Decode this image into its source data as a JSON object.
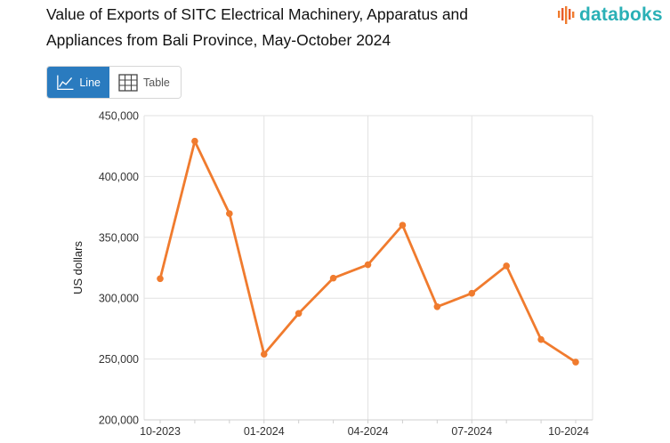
{
  "title": "Value of Exports of SITC Electrical Machinery, Apparatus and Appliances from Bali Province, May-October 2024",
  "logo": {
    "text": "databoks",
    "icon": "databoks-logo-icon",
    "color": "#2ab0b6"
  },
  "view_toggle": {
    "line_label": "Line",
    "table_label": "Table",
    "line_icon": "line-chart-icon",
    "table_icon": "table-grid-icon",
    "active": "line",
    "active_color": "#2a7bbf"
  },
  "chart_data": {
    "type": "line",
    "title": "Value of Exports of SITC Electrical Machinery, Apparatus and Appliances from Bali Province, May-October 2024",
    "xlabel": "",
    "ylabel": "US dollars",
    "ylim": [
      200000,
      450000
    ],
    "yticks": [
      "200,000",
      "250,000",
      "300,000",
      "350,000",
      "400,000",
      "450,000"
    ],
    "xticks": [
      "10-2023",
      "01-2024",
      "04-2024",
      "07-2024",
      "10-2024"
    ],
    "x": [
      "10-2023",
      "11-2023",
      "12-2023",
      "01-2024",
      "02-2024",
      "03-2024",
      "04-2024",
      "05-2024",
      "06-2024",
      "07-2024",
      "08-2024",
      "09-2024",
      "10-2024"
    ],
    "series": [
      {
        "color": "#f07b2e",
        "values": [
          316000,
          429000,
          369500,
          254000,
          287500,
          316500,
          327500,
          360000,
          293000,
          304000,
          326500,
          266000,
          247500
        ]
      }
    ],
    "grid": true,
    "legend": "none"
  }
}
